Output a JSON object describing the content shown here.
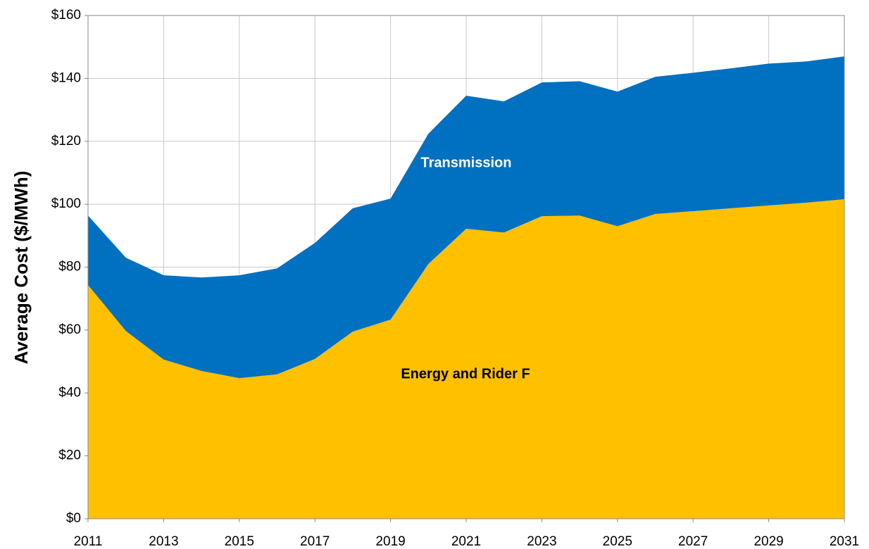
{
  "chart_data": {
    "type": "stacked_area",
    "y_label": "Average Cost ($/MWh)",
    "x": [
      2011,
      2012,
      2013,
      2014,
      2015,
      2016,
      2017,
      2018,
      2019,
      2020,
      2021,
      2022,
      2023,
      2024,
      2025,
      2026,
      2027,
      2028,
      2029,
      2030,
      2031
    ],
    "series": [
      {
        "name": "Energy and Rider F",
        "color": "#ffc000",
        "values": [
          74.3,
          59.7,
          50.6,
          47,
          44.7,
          45.9,
          50.8,
          59.5,
          63.3,
          81,
          92.2,
          91,
          96.2,
          96.4,
          93,
          96.9,
          97.8,
          98.7,
          99.6,
          100.5,
          101.6
        ]
      },
      {
        "name": "Transmission",
        "color": "#0070c0",
        "values": [
          22.1,
          23.3,
          26.8,
          29.7,
          32.7,
          33.7,
          36.9,
          39.2,
          38.5,
          41.4,
          42.3,
          41.7,
          42.5,
          42.7,
          42.8,
          43.6,
          44,
          44.5,
          45.1,
          44.9,
          45.4
        ]
      }
    ],
    "xlim": [
      2011,
      2031
    ],
    "xticks": [
      2011,
      2013,
      2015,
      2017,
      2019,
      2021,
      2023,
      2025,
      2027,
      2029,
      2031
    ],
    "ylim": [
      0,
      160
    ],
    "yticks": [
      {
        "value": 0,
        "label": "$0"
      },
      {
        "value": 20,
        "label": "$20"
      },
      {
        "value": 40,
        "label": "$40"
      },
      {
        "value": 60,
        "label": "$60"
      },
      {
        "value": 80,
        "label": "$80"
      },
      {
        "value": 100,
        "label": "$100"
      },
      {
        "value": 120,
        "label": "$120"
      },
      {
        "value": 140,
        "label": "$140"
      },
      {
        "value": 160,
        "label": "$160"
      }
    ],
    "grid": true
  }
}
